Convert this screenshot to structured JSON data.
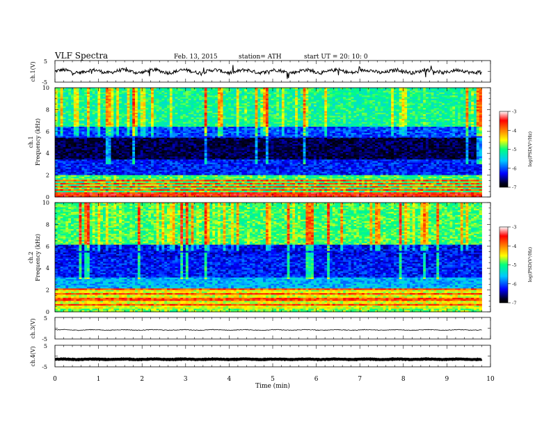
{
  "header": {
    "title": "VLF Spectra",
    "date": "Feb. 13, 2015",
    "station": "station= ATH",
    "start": "start UT =   20: 10: 0"
  },
  "chart_data": {
    "type": "heatmap",
    "x_axis": {
      "label": "Time (min)",
      "range": [
        0,
        10
      ],
      "ticks": [
        "0",
        "1",
        "2",
        "3",
        "4",
        "5",
        "6",
        "7",
        "8",
        "9",
        "10"
      ],
      "data_extent": [
        0,
        9.8
      ]
    },
    "panels": [
      {
        "id": "ch1_wave",
        "type": "line",
        "ylabel": "ch.1(V)",
        "yrange": [
          -5,
          5
        ],
        "ticks": [
          "5",
          "-5"
        ],
        "baseline": 0
      },
      {
        "id": "ch1_spec",
        "type": "heatmap",
        "ylabel": "ch.1\nFrequency (kHz)",
        "ylabel_lines": [
          "ch.1",
          "Frequency (kHz)"
        ],
        "yrange": [
          0,
          10
        ],
        "ticks": [
          "0",
          "2",
          "4",
          "6",
          "8",
          "10"
        ]
      },
      {
        "id": "ch2_spec",
        "type": "heatmap",
        "ylabel": "ch.2\nFrequency (kHz)",
        "ylabel_lines": [
          "ch.2",
          "Frequency (kHz)"
        ],
        "yrange": [
          0,
          10
        ],
        "ticks": [
          "0",
          "2",
          "4",
          "6",
          "8",
          "10"
        ]
      },
      {
        "id": "ch3_wave",
        "type": "line",
        "ylabel": "ch.3(V)",
        "yrange": [
          -5,
          5
        ],
        "ticks": [
          "5",
          "-5"
        ],
        "baseline": -0.8
      },
      {
        "id": "ch4_wave",
        "type": "line",
        "ylabel": "ch.4(V)",
        "yrange": [
          -5,
          5
        ],
        "ticks": [
          "5",
          "-5"
        ],
        "baseline": -1.5
      }
    ],
    "colorbar": {
      "label": "log(PSD(V²/Hz)",
      "range": [
        -7,
        -3
      ],
      "ticks": [
        "-3",
        "-4",
        "-5",
        "-6",
        "-7"
      ],
      "colormap": [
        "#000000",
        "#0000ff",
        "#00c8ff",
        "#00ff80",
        "#ffff00",
        "#ff8000",
        "#ff0000",
        "#ffffff"
      ]
    }
  }
}
